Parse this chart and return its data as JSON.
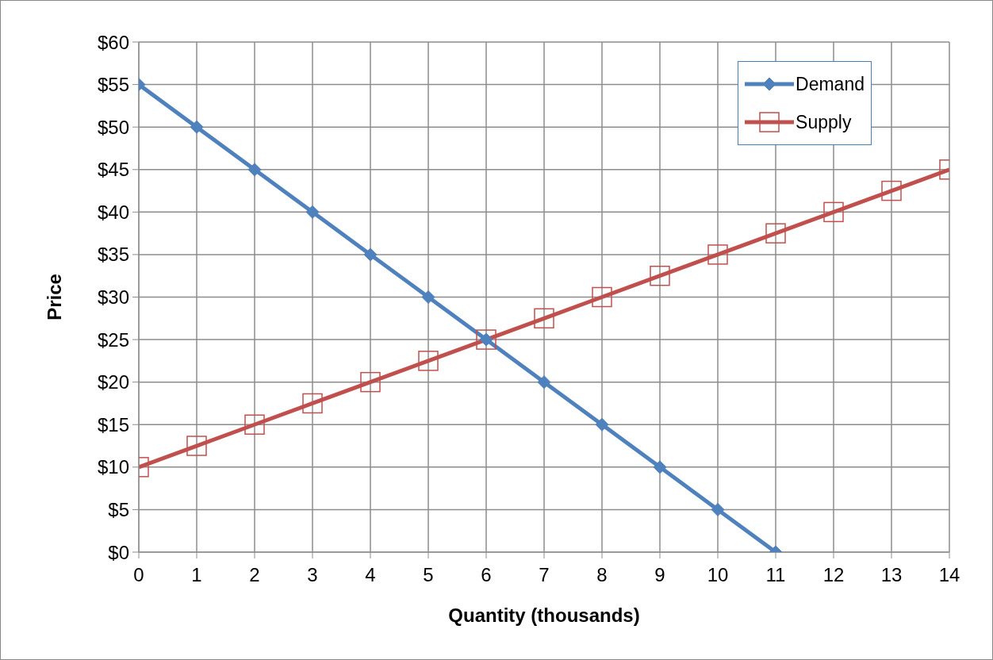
{
  "chart_data": {
    "type": "line",
    "xlabel": "Quantity (thousands)",
    "ylabel": "Price",
    "xlim": [
      0,
      14
    ],
    "xticks": [
      0,
      1,
      2,
      3,
      4,
      5,
      6,
      7,
      8,
      9,
      10,
      11,
      12,
      13,
      14
    ],
    "ylim": [
      0,
      60
    ],
    "yticks": [
      {
        "value": 0,
        "label": "$0"
      },
      {
        "value": 5,
        "label": "$5"
      },
      {
        "value": 10,
        "label": "$10"
      },
      {
        "value": 15,
        "label": "$15"
      },
      {
        "value": 20,
        "label": "$20"
      },
      {
        "value": 25,
        "label": "$25"
      },
      {
        "value": 30,
        "label": "$30"
      },
      {
        "value": 35,
        "label": "$35"
      },
      {
        "value": 40,
        "label": "$40"
      },
      {
        "value": 45,
        "label": "$45"
      },
      {
        "value": 50,
        "label": "$50"
      },
      {
        "value": 55,
        "label": "$55"
      },
      {
        "value": 60,
        "label": "$60"
      }
    ],
    "grid": true,
    "legend": "top right",
    "line_style": "solid",
    "series": [
      {
        "name": "Demand",
        "color": "#4f81bd",
        "marker": "diamond",
        "x": [
          0,
          1,
          2,
          3,
          4,
          5,
          6,
          7,
          8,
          9,
          10,
          11
        ],
        "values": [
          55,
          50,
          45,
          40,
          35,
          30,
          25,
          20,
          15,
          10,
          5,
          0
        ]
      },
      {
        "name": "Supply",
        "color": "#c0504d",
        "marker": "square",
        "x": [
          0,
          1,
          2,
          3,
          4,
          5,
          6,
          7,
          8,
          9,
          10,
          11,
          12,
          13,
          14
        ],
        "values": [
          10,
          12.5,
          15,
          17.5,
          20,
          22.5,
          25,
          27.5,
          30,
          32.5,
          35,
          37.5,
          40,
          42.5,
          45
        ]
      }
    ]
  }
}
